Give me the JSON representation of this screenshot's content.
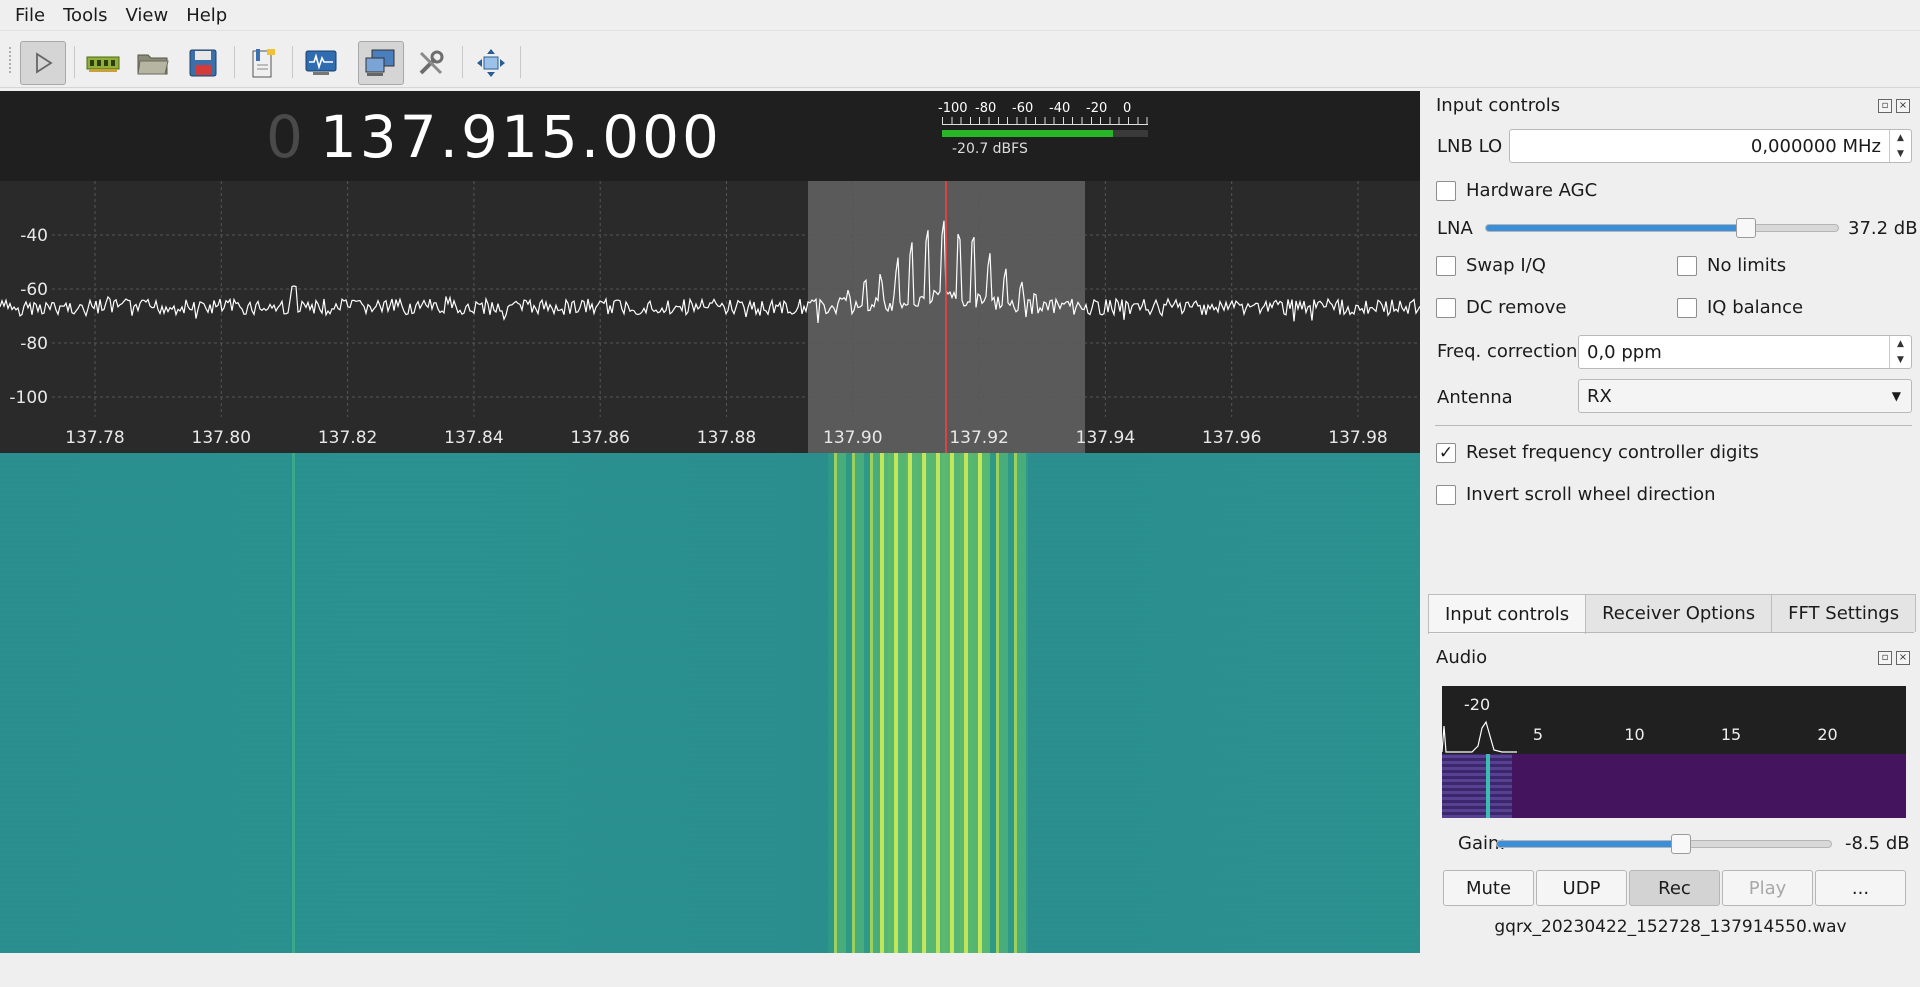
{
  "menu": {
    "file": "File",
    "tools": "Tools",
    "view": "View",
    "help": "Help"
  },
  "toolbar": {
    "buttons": [
      "play-icon",
      "device-icon",
      "open-icon",
      "save-icon",
      "bookmark-icon",
      "monitor-icon",
      "remote-icon",
      "settings-icon",
      "fit-icon"
    ]
  },
  "receiver": {
    "freq_prefix": "0",
    "frequency": "137.915.000",
    "meter_scale": [
      "-100",
      "-80",
      "-60",
      "-40",
      "-20",
      "0"
    ],
    "meter_level_fraction": 0.83,
    "meter_readout": "-20.7 dBFS"
  },
  "spectrum": {
    "y_ticks": [
      "-40",
      "-60",
      "-80",
      "-100"
    ],
    "x_ticks": [
      "137.78",
      "137.80",
      "137.82",
      "137.84",
      "137.86",
      "137.88",
      "137.90",
      "137.92",
      "137.94",
      "137.96",
      "137.98"
    ]
  },
  "input_controls": {
    "title": "Input controls",
    "lnb_label": "LNB LO",
    "lnb_value": "0,000000 MHz",
    "hw_agc": "Hardware AGC",
    "lna_label": "LNA",
    "lna_fraction": 0.74,
    "lna_value": "37.2 dB",
    "swap_iq": "Swap I/Q",
    "no_limits": "No limits",
    "dc_remove": "DC remove",
    "iq_balance": "IQ balance",
    "freq_corr_label": "Freq. correction",
    "freq_corr_value": "0,0 ppm",
    "antenna_label": "Antenna",
    "antenna_value": "RX",
    "reset_digits": "Reset frequency controller digits",
    "reset_checked": "✓",
    "invert_scroll": "Invert scroll wheel direction"
  },
  "tabs": [
    "Input controls",
    "Receiver Options",
    "FFT Settings"
  ],
  "audio": {
    "title": "Audio",
    "scale_top": "-20",
    "x_ticks": [
      "5",
      "10",
      "15",
      "20"
    ],
    "gain_label": "Gain:",
    "gain_fraction": 0.55,
    "gain_value": "-8.5 dB",
    "mute": "Mute",
    "udp": "UDP",
    "rec": "Rec",
    "play": "Play",
    "more": "...",
    "filename": "gqrx_20230422_152728_137914550.wav"
  },
  "colors": {
    "trace": "#ffffff",
    "marker": "#ff4040",
    "meter_fill": "#28b528",
    "slider_fill": "#3b8ed8"
  }
}
